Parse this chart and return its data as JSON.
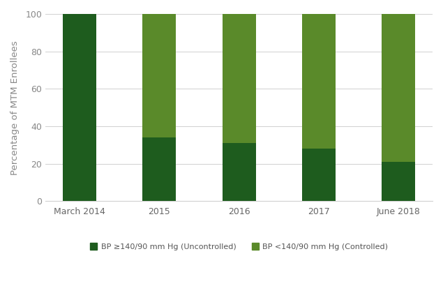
{
  "categories": [
    "March 2014",
    "2015",
    "2016",
    "2017",
    "June 2018"
  ],
  "uncontrolled": [
    100,
    34,
    31,
    28,
    21
  ],
  "controlled": [
    0,
    66,
    69,
    72,
    79
  ],
  "color_uncontrolled": "#1e5c1e",
  "color_controlled": "#5a8a2a",
  "ylabel": "Percentage of MTM Enrollees",
  "ylim": [
    0,
    100
  ],
  "yticks": [
    0,
    20,
    40,
    60,
    80,
    100
  ],
  "legend_uncontrolled": "BP ≥140/90 mm Hg (Uncontrolled)",
  "legend_controlled": "BP <140/90 mm Hg (Controlled)",
  "bar_width": 0.42,
  "background_color": "#ffffff",
  "grid_color": "#d0d0d0",
  "tick_color": "#888888",
  "label_fontsize": 9.5,
  "tick_fontsize": 9.0,
  "legend_fontsize": 8.0
}
